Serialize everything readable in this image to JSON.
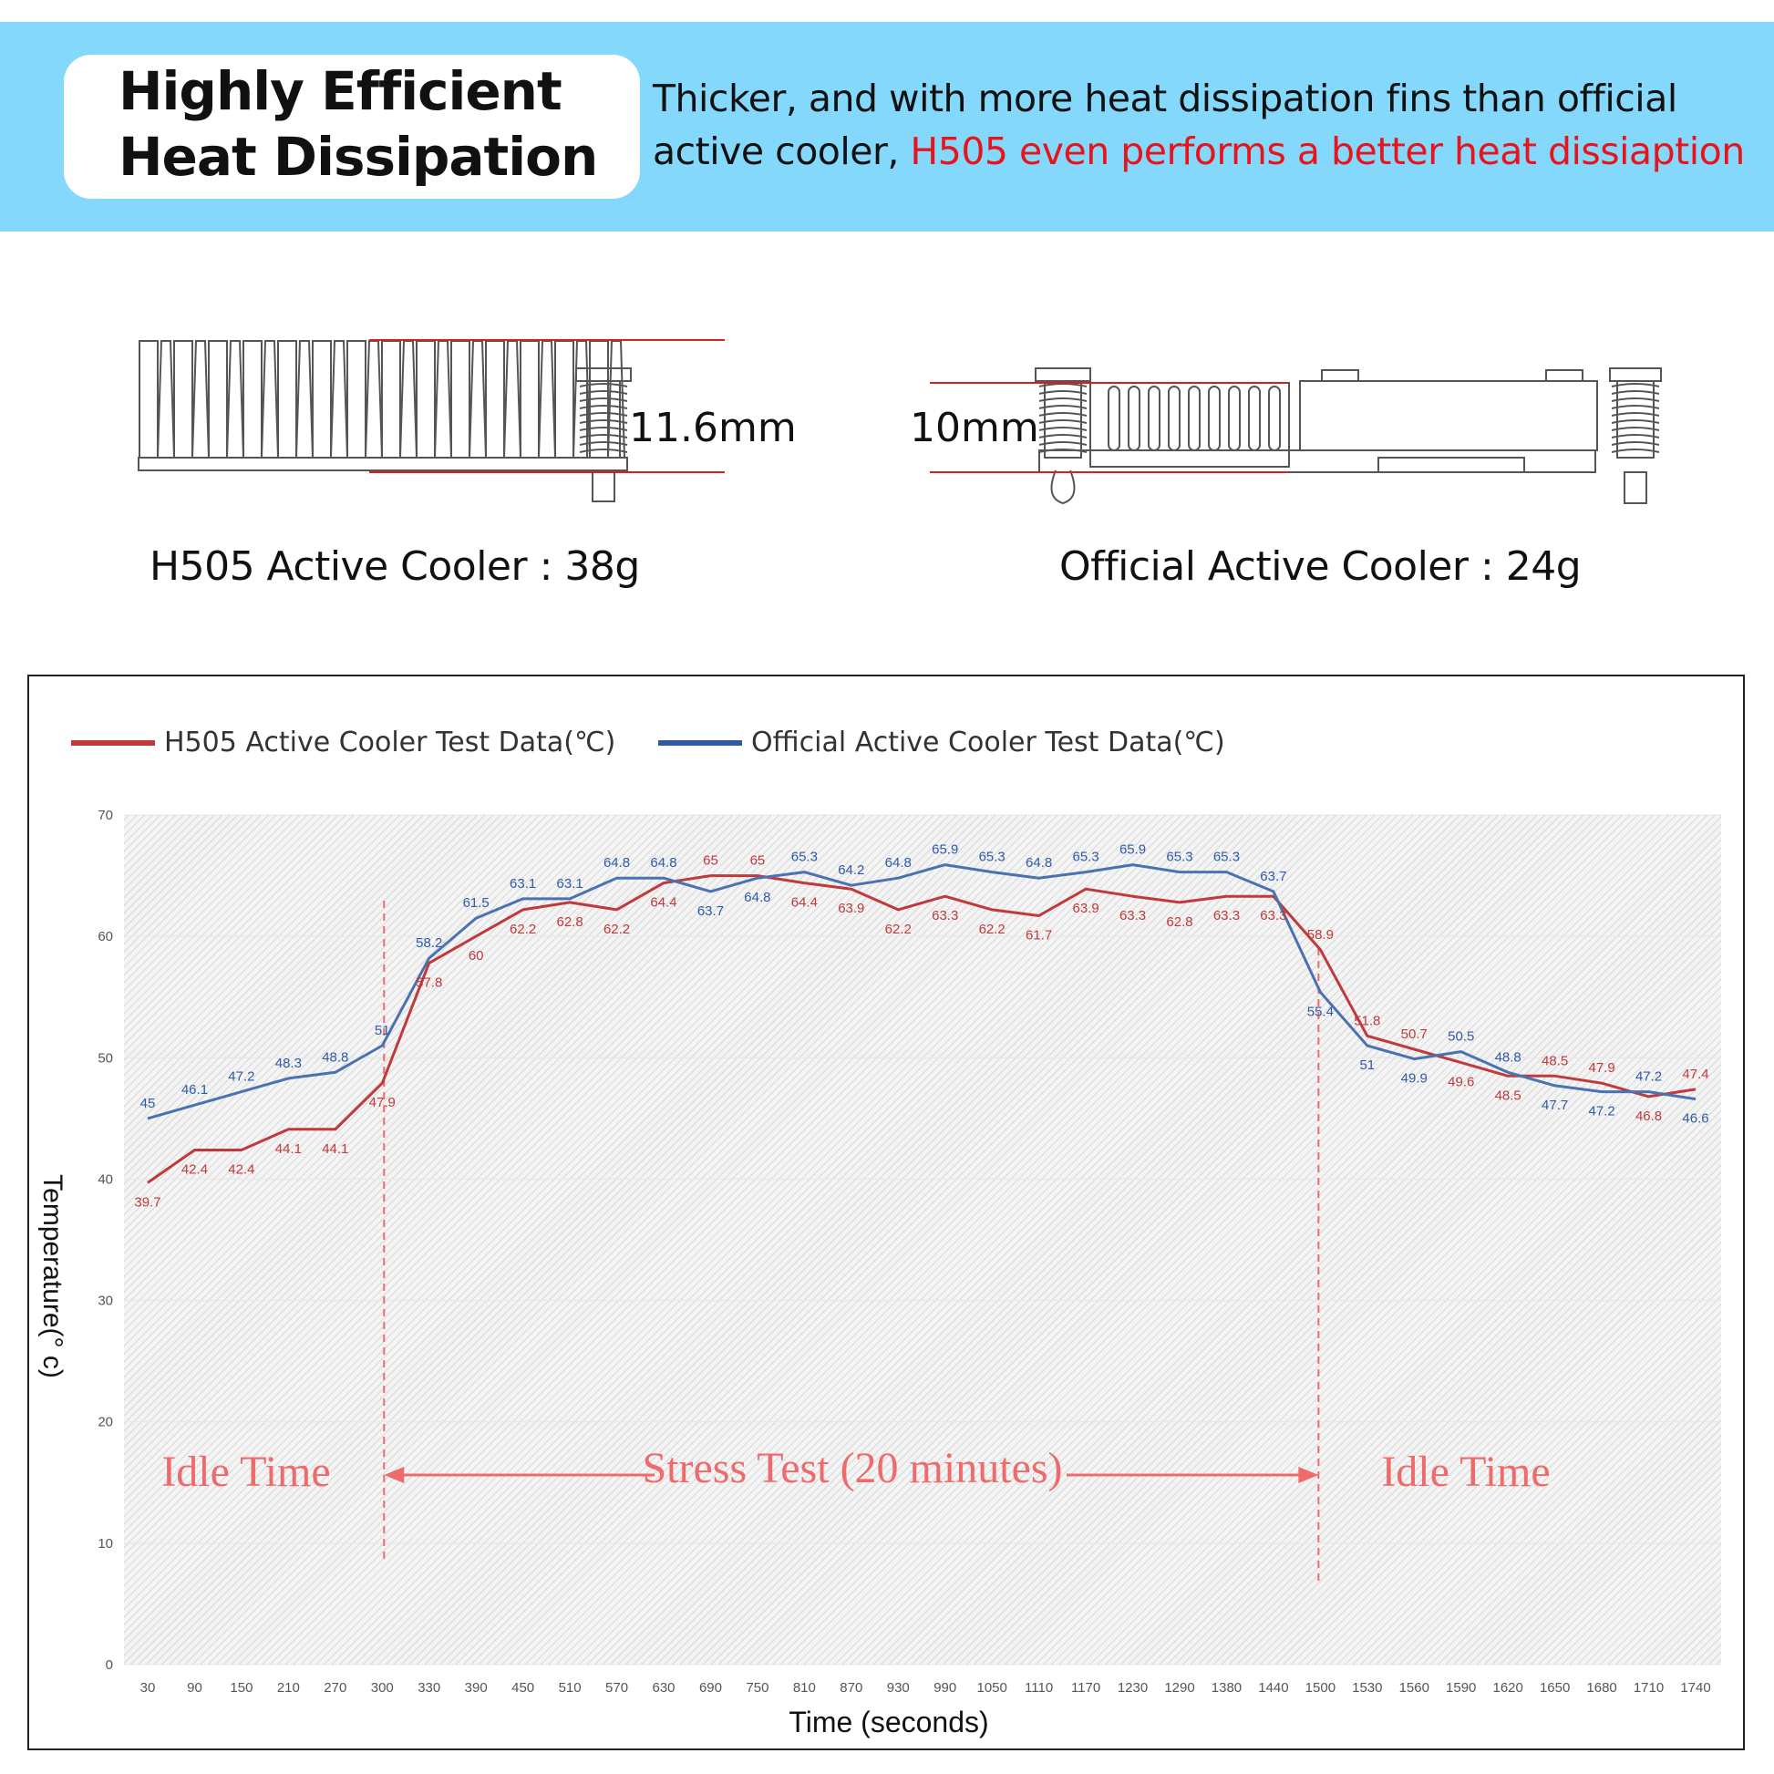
{
  "header": {
    "title_line1": "Highly Efficient",
    "title_line2": "Heat Dissipation",
    "desc_line1": "Thicker, and with more heat dissipation fins than official",
    "desc_line2_black": "active cooler, ",
    "desc_line2_red": "H505 even performs a better heat dissiaption"
  },
  "comparison": {
    "h505_height": "11.6mm",
    "official_height": "10mm",
    "h505_weight": "H505 Active Cooler : 38g",
    "official_weight": "Official Active Cooler : 24g"
  },
  "colors": {
    "banner": "#84d8fb",
    "h505": "#c0393b",
    "official": "#4a72b0",
    "annotation": "#ef6b6b"
  },
  "chart_data": {
    "type": "line",
    "xlabel": "Time (seconds)",
    "ylabel": "Temperature(° c)",
    "ylim": [
      0,
      70
    ],
    "yticks": [
      0,
      10,
      20,
      30,
      40,
      50,
      60,
      70
    ],
    "grid": "hatched background",
    "legend_position": "top-left",
    "categories": [
      "30",
      "90",
      "150",
      "210",
      "270",
      "300",
      "330",
      "390",
      "450",
      "510",
      "570",
      "630",
      "690",
      "750",
      "810",
      "870",
      "930",
      "990",
      "1050",
      "1110",
      "1170",
      "1230",
      "1290",
      "1380",
      "1440",
      "1500",
      "1530",
      "1560",
      "1590",
      "1620",
      "1650",
      "1680",
      "1710",
      "1740"
    ],
    "series": [
      {
        "name": "H505 Active Cooler Test Data(℃)",
        "values": [
          39.7,
          42.4,
          42.4,
          44.1,
          44.1,
          47.9,
          57.8,
          60,
          62.2,
          62.8,
          62.2,
          64.4,
          65,
          65,
          64.4,
          63.9,
          62.2,
          63.3,
          62.2,
          61.7,
          63.9,
          63.3,
          62.8,
          63.3,
          63.3,
          58.9,
          51.8,
          50.7,
          49.6,
          48.5,
          48.5,
          47.9,
          46.8,
          47.4
        ]
      },
      {
        "name": "Official Active Cooler Test Data(℃)",
        "values": [
          45,
          46.1,
          47.2,
          48.3,
          48.8,
          51,
          58.2,
          61.5,
          63.1,
          63.1,
          64.8,
          64.8,
          63.7,
          64.8,
          65.3,
          64.2,
          64.8,
          65.9,
          65.3,
          64.8,
          65.3,
          65.9,
          65.3,
          65.3,
          63.7,
          55.4,
          51,
          49.9,
          50.5,
          48.8,
          47.7,
          47.2,
          47.2,
          46.6
        ]
      }
    ],
    "annotations": {
      "idle_left": "Idle Time",
      "stress": "Stress Test (20 minutes)",
      "idle_right": "Idle Time"
    }
  }
}
